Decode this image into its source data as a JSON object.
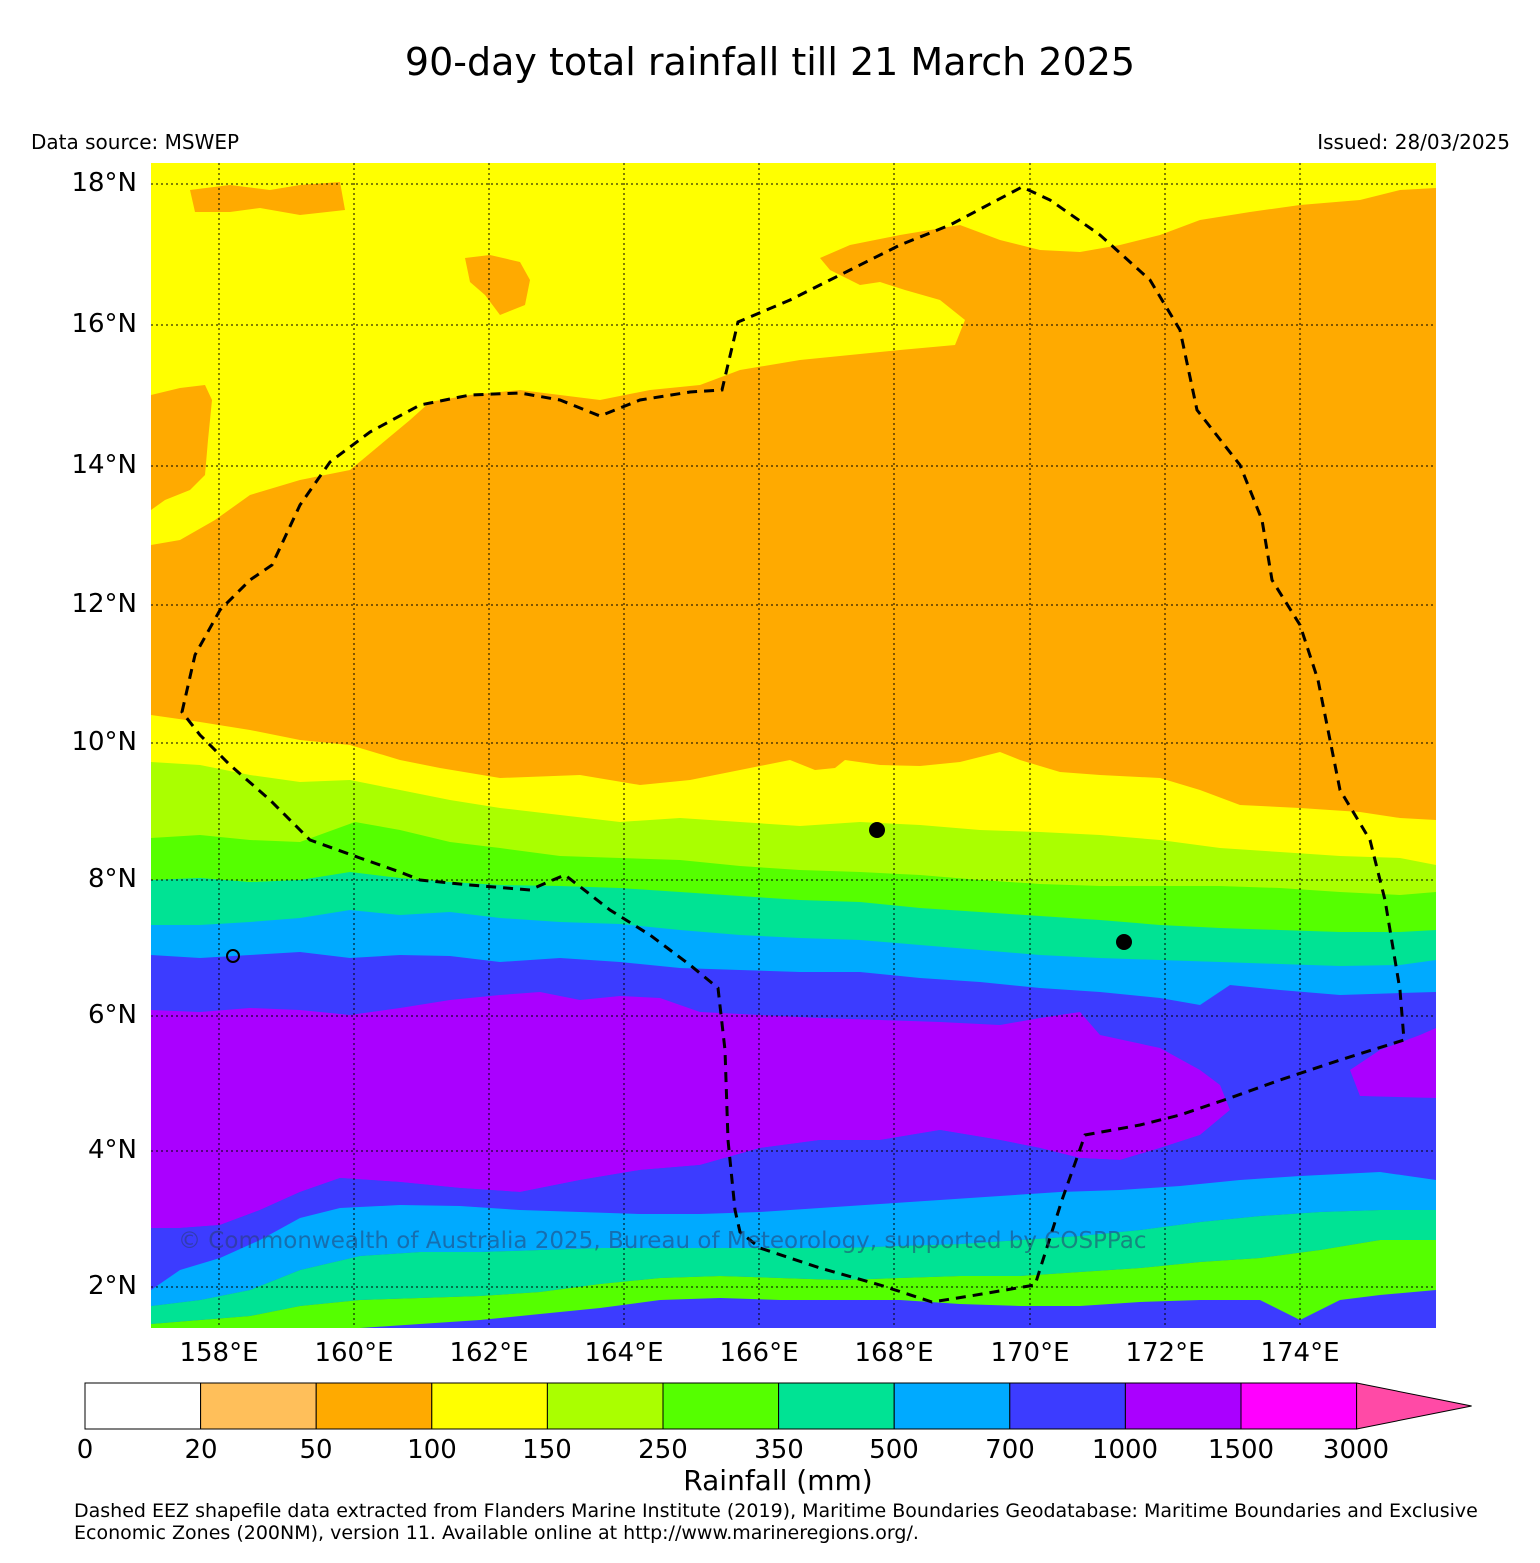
{
  "title": "90-day total rainfall till 21 March 2025",
  "data_source": "Data source: MSWEP",
  "issued": "Issued: 28/03/2025",
  "credit": "© Commonwealth of Australia 2025, Bureau of Meteorology, supported by COSPPac",
  "lat_labels": [
    "18°N",
    "16°N",
    "14°N",
    "12°N",
    "10°N",
    "8°N",
    "6°N",
    "4°N",
    "2°N"
  ],
  "lon_labels": [
    "158°E",
    "160°E",
    "162°E",
    "164°E",
    "166°E",
    "168°E",
    "170°E",
    "172°E",
    "174°E"
  ],
  "colorbar": {
    "title": "Rainfall (mm)",
    "ticks": [
      "0",
      "20",
      "50",
      "100",
      "150",
      "250",
      "350",
      "500",
      "700",
      "1000",
      "1500",
      "3000"
    ],
    "colors": [
      "#ffffff",
      "#ffbf5a",
      "#ffaa00",
      "#ffff00",
      "#aaff00",
      "#55ff00",
      "#00e394",
      "#00aaff",
      "#3c3cff",
      "#aa00ff",
      "#ff00ff",
      "#ff4aa6"
    ]
  },
  "footnote_line1": "Dashed EEZ shapefile data extracted from Flanders Marine Institute (2019), Maritime Boundaries Geodatabase: Maritime Boundaries and Exclusive",
  "footnote_line2": "Economic Zones (200NM), version 11. Available online at http://www.marineregions.org/."
}
